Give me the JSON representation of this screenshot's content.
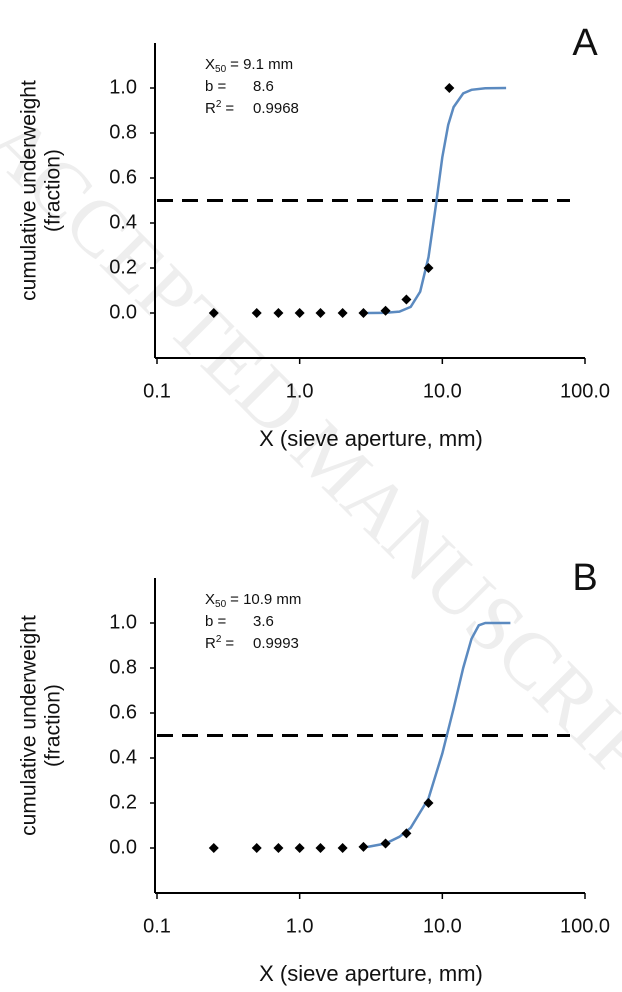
{
  "watermark": "ACCEPTED MANUSCRIPT",
  "chart_data": [
    {
      "type": "line",
      "panel_label": "A",
      "x_label": "X (sieve aperture, mm)",
      "y_label": [
        "cumulative underweight",
        "(fraction)"
      ],
      "log_x": true,
      "xlim": [
        0.1,
        100
      ],
      "xticks": [
        0.1,
        {
          "value": 1,
          "label": "1.0"
        },
        {
          "value": 10,
          "label": "10.0"
        },
        {
          "value": 100,
          "label": "100.0"
        }
      ],
      "ylim": [
        -0.2,
        1.2
      ],
      "yticks": [
        {
          "value": 0,
          "label": "0.0"
        },
        0.2,
        0.4,
        0.6,
        0.8,
        {
          "value": 1,
          "label": "1.0"
        }
      ],
      "hline": 0.5,
      "annotation": {
        "x50_symbol": "X",
        "x50_subscript": "50",
        "x50_text": "= 9.1 mm",
        "b_text": "b =",
        "b_value": "8.6",
        "r2_symbol": "R",
        "r2_superscript": "2",
        "r2_text": "=",
        "r2_value": "0.9968"
      },
      "series": [
        {
          "style": "line",
          "color": "#5b8ac0",
          "x": [
            3,
            4,
            5,
            6,
            7,
            8,
            9,
            10,
            11,
            12,
            14,
            16,
            20,
            28
          ],
          "values": [
            0,
            0.001,
            0.006,
            0.027,
            0.095,
            0.248,
            0.476,
            0.692,
            0.836,
            0.915,
            0.976,
            0.992,
            0.999,
            1.0
          ]
        },
        {
          "style": "points",
          "color": "#000000",
          "x": [
            0.25,
            0.5,
            0.71,
            1.0,
            1.4,
            2.0,
            2.8,
            4.0,
            5.6,
            8.0,
            11.2
          ],
          "values": [
            0,
            0,
            0,
            0,
            0,
            0,
            0,
            0.01,
            0.06,
            0.2,
            1.0
          ]
        }
      ]
    },
    {
      "type": "line",
      "panel_label": "B",
      "x_label": "X (sieve aperture, mm)",
      "y_label": [
        "cumulative underweight",
        "(fraction)"
      ],
      "log_x": true,
      "xlim": [
        0.1,
        100
      ],
      "xticks": [
        0.1,
        {
          "value": 1,
          "label": "1.0"
        },
        {
          "value": 10,
          "label": "10.0"
        },
        {
          "value": 100,
          "label": "100.0"
        }
      ],
      "ylim": [
        -0.2,
        1.2
      ],
      "yticks": [
        {
          "value": 0,
          "label": "0.0"
        },
        0.2,
        0.4,
        0.6,
        0.8,
        {
          "value": 1,
          "label": "1.0"
        }
      ],
      "hline": 0.5,
      "annotation": {
        "x50_symbol": "X",
        "x50_subscript": "50",
        "x50_text": "= 10.9 mm",
        "b_text": "b =",
        "b_value": "3.6",
        "r2_symbol": "R",
        "r2_superscript": "2",
        "r2_text": "=",
        "r2_value": "0.9993"
      },
      "series": [
        {
          "style": "line",
          "color": "#5b8ac0",
          "x": [
            3,
            4,
            5,
            6,
            8,
            10,
            12,
            14,
            16,
            18,
            20,
            30
          ],
          "values": [
            0.005,
            0.02,
            0.05,
            0.09,
            0.22,
            0.42,
            0.62,
            0.8,
            0.93,
            0.99,
            1.0,
            1.0
          ]
        },
        {
          "style": "points",
          "color": "#000000",
          "x": [
            0.25,
            0.5,
            0.71,
            1.0,
            1.4,
            2.0,
            2.8,
            4.0,
            5.6,
            8.0
          ],
          "values": [
            0,
            0,
            0,
            0,
            0,
            0,
            0.005,
            0.02,
            0.065,
            0.2
          ]
        }
      ]
    }
  ]
}
